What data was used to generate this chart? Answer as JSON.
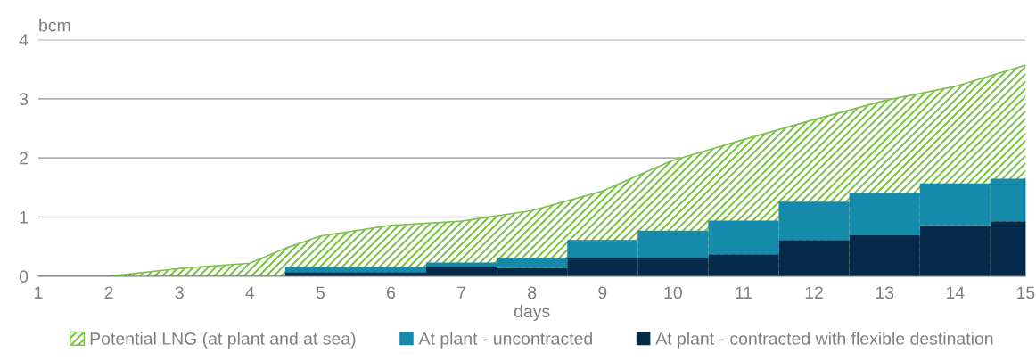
{
  "chart_data": {
    "type": "area",
    "xlabel": "days",
    "ylabel": "bcm",
    "xlim": [
      1,
      15
    ],
    "xticks": [
      1,
      2,
      3,
      4,
      5,
      6,
      7,
      8,
      9,
      10,
      11,
      12,
      13,
      14,
      15
    ],
    "ylim": [
      0,
      4
    ],
    "yticks": [
      0,
      1,
      2,
      3,
      4
    ],
    "grid": "y",
    "legend": "bottom",
    "stacked": true,
    "series": [
      {
        "name": "Potential LNG (at plant and at sea)",
        "color": "#7dc24a",
        "x": [
          1,
          2,
          3,
          4,
          4.5,
          5,
          6,
          7,
          8,
          9,
          10,
          11,
          12,
          13,
          14,
          15
        ],
        "values": [
          0,
          0,
          0.13,
          0.22,
          0.47,
          0.68,
          0.86,
          0.93,
          1.11,
          1.44,
          1.96,
          2.31,
          2.65,
          2.97,
          3.21,
          3.57
        ]
      },
      {
        "name": "At plant - contracted with flexible destination",
        "type": "bar",
        "color": "#062a49",
        "x": [
          5,
          6,
          7,
          8,
          9,
          10,
          11,
          12,
          13,
          14,
          15
        ],
        "values": [
          0.07,
          0.07,
          0.15,
          0.14,
          0.3,
          0.3,
          0.37,
          0.61,
          0.69,
          0.86,
          0.93
        ]
      },
      {
        "name": "At plant - uncontracted",
        "type": "bar",
        "color": "#168aaa",
        "x": [
          5,
          6,
          7,
          8,
          9,
          10,
          11,
          12,
          13,
          14,
          15
        ],
        "values": [
          0.08,
          0.08,
          0.08,
          0.16,
          0.31,
          0.47,
          0.57,
          0.65,
          0.72,
          0.71,
          0.72
        ]
      }
    ]
  }
}
